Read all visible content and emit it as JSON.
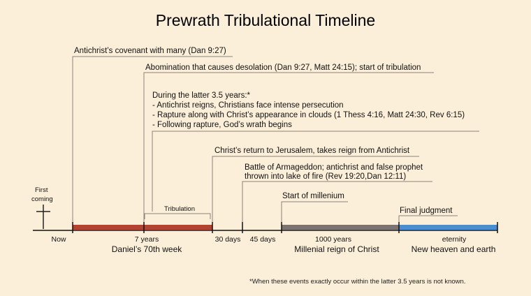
{
  "title": "Prewrath Tribulational Timeline",
  "colors": {
    "background": "#fcefd9",
    "tribulation": "#b3432e",
    "millennium": "#7a7370",
    "eternity": "#4a8ed0",
    "connector": "#8c8278"
  },
  "first_coming": {
    "line1": "First",
    "line2": "coming",
    "icon": "cross-icon"
  },
  "events": {
    "covenant": "Antichrist’s covenant with many (Dan 9:27)",
    "abomination": "Abomination that causes desolation (Dan 9:27, Matt 24:15); start of tribulation",
    "latter_heading": "During the latter 3.5 years:*",
    "latter_items": [
      "- Antichrist reigns, Christians face intense persecution",
      "- Rapture along with Christ’s appearance in clouds (1 Thess 4:16, Matt 24:30, Rev 6:15)",
      "- Following rapture, God’s wrath begins"
    ],
    "return": "Christ’s return to Jerusalem, takes reign from Antichrist",
    "armageddon_line1": "Battle of Armageddon; antichrist and false prophet",
    "armageddon_line2": "thrown into lake of fire (Rev 19:20,Dan 12:11)",
    "millennium_start": "Start of millenium",
    "final_judgment": "Final judgment"
  },
  "tribulation_label": "Tribulation",
  "ticks": {
    "now": "Now",
    "seven_years": "7 years",
    "seven_years_sub": "Daniel’s 70th week",
    "thirty_days": "30 days",
    "fortyfive_days": "45 days",
    "thousand_years": "1000 years",
    "thousand_years_sub": "Millenial reign of Christ",
    "eternity": "eternity",
    "eternity_sub": "New heaven and earth"
  },
  "footnote": "*When these events exactly occur within the latter 3.5 years is not known."
}
